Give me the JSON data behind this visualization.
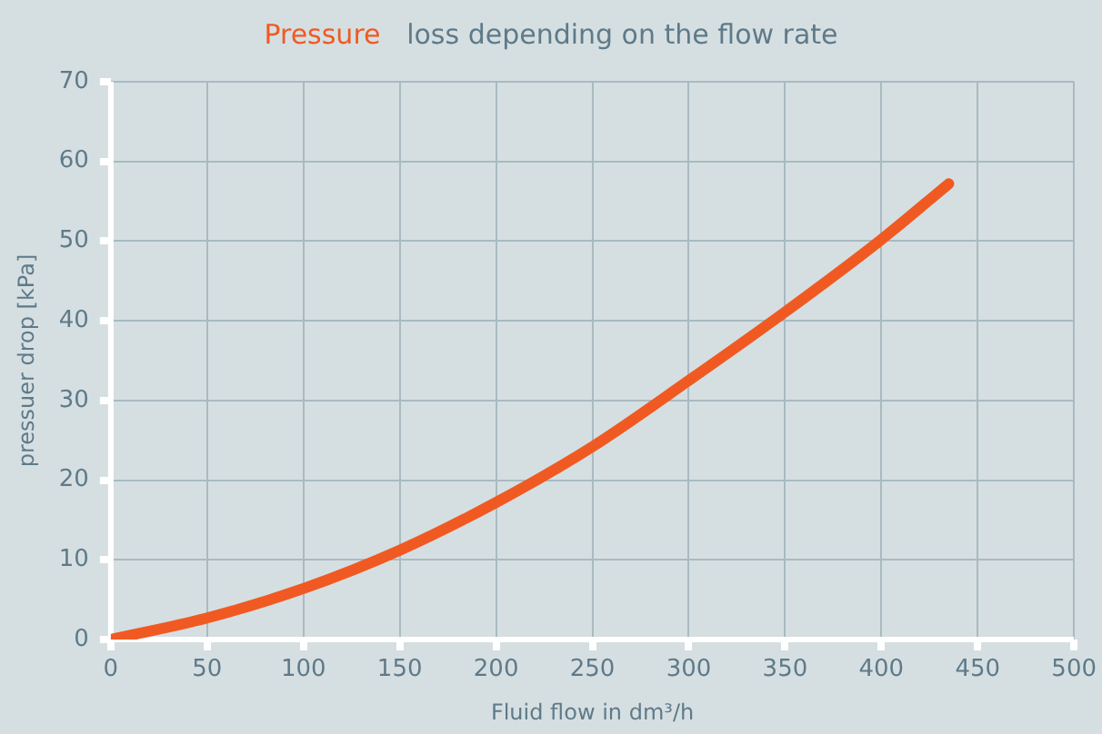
{
  "chart_data": {
    "type": "line",
    "title": "Pressure loss depending on the flow rate",
    "xlabel": "Fluid flow in dm³/h",
    "ylabel": "pressuer drop [kPa]",
    "x": [
      0,
      50,
      100,
      150,
      200,
      250,
      300,
      350,
      400,
      435
    ],
    "series": [
      {
        "color": "#f05a22",
        "values": [
          0,
          2.7,
          6.4,
          11.2,
          17.2,
          24.2,
          32.5,
          41.1,
          50.2,
          57.2
        ]
      }
    ],
    "xlim": [
      0,
      500
    ],
    "xticks": [
      0,
      50,
      100,
      150,
      200,
      250,
      300,
      350,
      400,
      450,
      500
    ],
    "ylim": [
      0,
      70
    ],
    "yticks": [
      0,
      10,
      20,
      30,
      40,
      50,
      60,
      70
    ],
    "grid": true,
    "legend": false,
    "marker": "none",
    "line_style": "solid"
  }
}
